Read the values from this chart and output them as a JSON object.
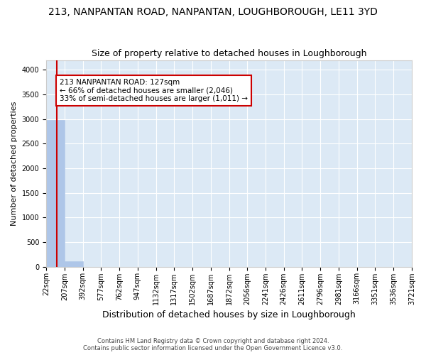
{
  "title": "213, NANPANTAN ROAD, NANPANTAN, LOUGHBOROUGH, LE11 3YD",
  "subtitle": "Size of property relative to detached houses in Loughborough",
  "xlabel": "Distribution of detached houses by size in Loughborough",
  "ylabel": "Number of detached properties",
  "footer_line1": "Contains HM Land Registry data © Crown copyright and database right 2024.",
  "footer_line2": "Contains public sector information licensed under the Open Government Licence v3.0.",
  "bin_edges": [
    22,
    207,
    392,
    577,
    762,
    947,
    1132,
    1317,
    1502,
    1687,
    1872,
    2056,
    2241,
    2426,
    2611,
    2796,
    2981,
    3166,
    3351,
    3536,
    3721
  ],
  "bin_labels": [
    "22sqm",
    "207sqm",
    "392sqm",
    "577sqm",
    "762sqm",
    "947sqm",
    "1132sqm",
    "1317sqm",
    "1502sqm",
    "1687sqm",
    "1872sqm",
    "2056sqm",
    "2241sqm",
    "2426sqm",
    "2611sqm",
    "2796sqm",
    "2981sqm",
    "3166sqm",
    "3351sqm",
    "3536sqm",
    "3721sqm"
  ],
  "bar_heights": [
    2980,
    108,
    0,
    0,
    0,
    0,
    0,
    0,
    0,
    0,
    0,
    0,
    0,
    0,
    0,
    0,
    0,
    0,
    0,
    0
  ],
  "bar_color": "#aec6e8",
  "bar_edge_color": "#aec6e8",
  "property_line_x": 127,
  "smaller_pct": 66,
  "smaller_count": 2046,
  "larger_semi_pct": 33,
  "larger_semi_count": 1011,
  "vline_color": "#cc0000",
  "annotation_box_edgecolor": "#cc0000",
  "ylim": [
    0,
    4200
  ],
  "yticks": [
    0,
    500,
    1000,
    1500,
    2000,
    2500,
    3000,
    3500,
    4000
  ],
  "bg_color": "#ffffff",
  "plot_bg_color": "#dce9f5",
  "grid_color": "#ffffff",
  "title_fontsize": 10,
  "subtitle_fontsize": 9,
  "ylabel_fontsize": 8,
  "xlabel_fontsize": 9,
  "tick_fontsize": 7,
  "footer_fontsize": 6
}
